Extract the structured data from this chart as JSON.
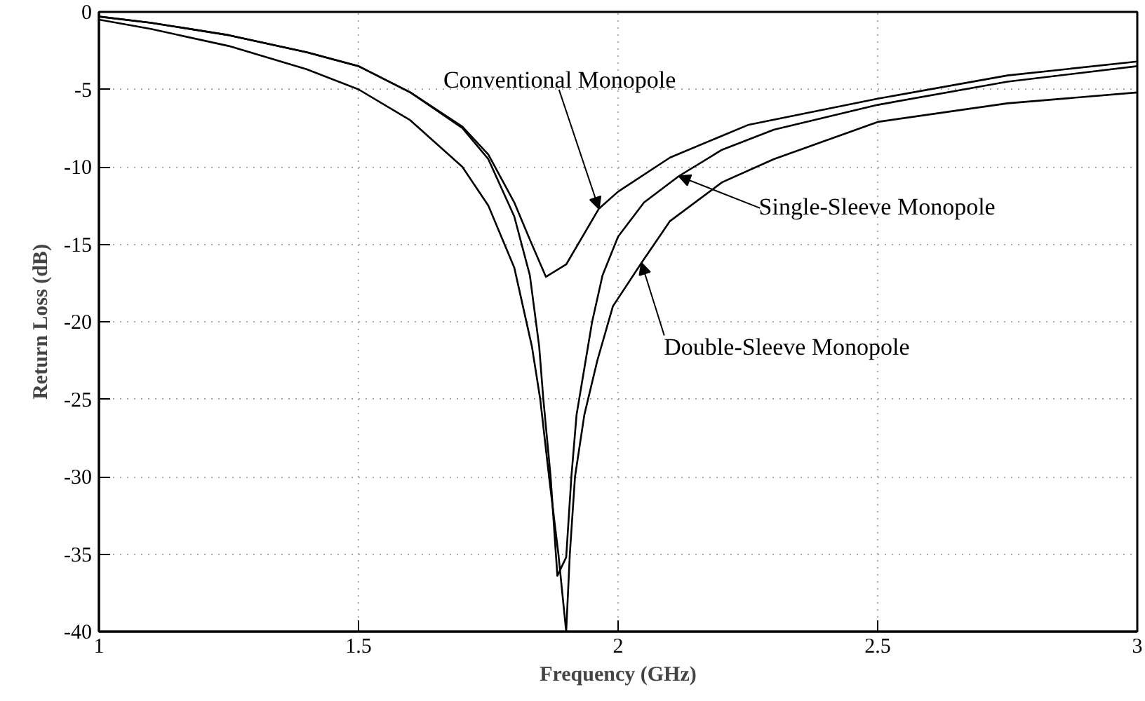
{
  "chart_data": {
    "type": "line",
    "xlabel": "Frequency (GHz)",
    "ylabel": "Return Loss (dB)",
    "xlim": [
      1,
      3
    ],
    "ylim": [
      -40,
      0
    ],
    "xticks": [
      1,
      1.5,
      2,
      2.5,
      3
    ],
    "yticks": [
      0,
      -5,
      -10,
      -15,
      -20,
      -25,
      -30,
      -35,
      -40
    ],
    "grid": true,
    "line_style": "solid",
    "marker": "none",
    "series": [
      {
        "color": "#000000",
        "x": [
          1.0,
          1.1,
          1.25,
          1.4,
          1.5,
          1.6,
          1.7,
          1.75,
          1.8,
          1.83,
          1.861,
          1.9,
          1.963,
          2.0,
          2.1,
          2.25,
          2.5,
          2.75,
          3.0
        ],
        "values": [
          -0.3,
          -0.7,
          -1.5,
          -2.6,
          -3.5,
          -5.2,
          -7.4,
          -9.2,
          -12.3,
          -14.7,
          -17.1,
          -16.3,
          -12.7,
          -11.6,
          -9.4,
          -7.3,
          -5.6,
          -4.1,
          -3.2
        ]
      },
      {
        "color": "#000000",
        "x": [
          1.0,
          1.1,
          1.25,
          1.4,
          1.5,
          1.6,
          1.7,
          1.75,
          1.8,
          1.83,
          1.848,
          1.856,
          1.87,
          1.883,
          1.9,
          1.91,
          1.92,
          1.935,
          1.95,
          1.97,
          2.0,
          2.05,
          2.117,
          2.2,
          2.3,
          2.5,
          2.75,
          3.0
        ],
        "values": [
          -0.3,
          -0.7,
          -1.5,
          -2.6,
          -3.5,
          -5.2,
          -7.5,
          -9.5,
          -13.2,
          -17,
          -21.6,
          -25,
          -30,
          -36.4,
          -35.2,
          -30,
          -26,
          -23,
          -20,
          -17,
          -14.5,
          -12.3,
          -10.6,
          -8.9,
          -7.6,
          -6.0,
          -4.5,
          -3.5
        ]
      },
      {
        "color": "#000000",
        "x": [
          1.0,
          1.1,
          1.25,
          1.4,
          1.5,
          1.6,
          1.7,
          1.75,
          1.8,
          1.834,
          1.85,
          1.867,
          1.885,
          1.9,
          1.907,
          1.917,
          1.935,
          1.96,
          1.99,
          2.045,
          2.1,
          2.2,
          2.3,
          2.5,
          2.75,
          3.0
        ],
        "values": [
          -0.5,
          -1.1,
          -2.2,
          -3.7,
          -5,
          -7,
          -10,
          -12.5,
          -16.5,
          -21.6,
          -25,
          -30,
          -35,
          -40,
          -35,
          -30,
          -26,
          -22.5,
          -19,
          -16.2,
          -13.5,
          -11,
          -9.5,
          -7.1,
          -5.9,
          -5.2
        ]
      }
    ],
    "annotations": [
      {
        "text": "Conventional Monopole",
        "x": 1.963,
        "y": -12.7
      },
      {
        "text": "Single-Sleeve Monopole",
        "x": 2.117,
        "y": -10.6
      },
      {
        "text": "Double-Sleeve Monopole",
        "x": 2.045,
        "y": -16.2
      }
    ]
  }
}
